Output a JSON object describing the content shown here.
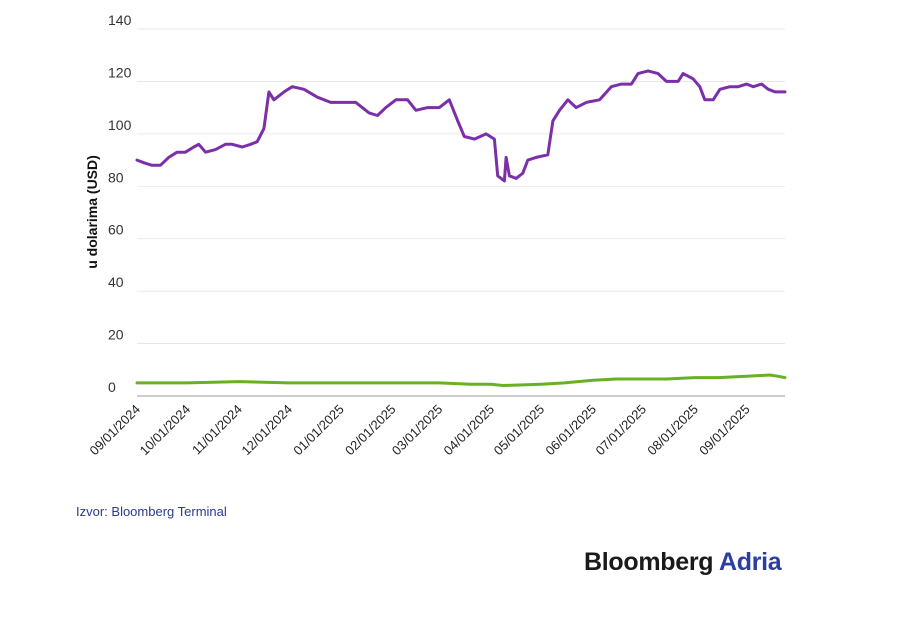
{
  "chart_data": {
    "type": "line",
    "ylabel": "u dolarima (USD)",
    "ylim": [
      0,
      140
    ],
    "yticks": [
      0,
      20,
      40,
      60,
      80,
      100,
      120,
      140
    ],
    "grid": true,
    "x_tick_labels": [
      "09/01/2024",
      "10/01/2024",
      "11/01/2024",
      "12/01/2024",
      "01/01/2025",
      "02/01/2025",
      "03/01/2025",
      "04/01/2025",
      "05/01/2025",
      "06/01/2025",
      "07/01/2025",
      "08/01/2025",
      "09/01/2025"
    ],
    "xlim": [
      "2024-09-01",
      "2025-09-24"
    ],
    "series": [
      {
        "color": "#7b2fa8",
        "points": [
          [
            "2024-09-01",
            90
          ],
          [
            "2024-09-05",
            89
          ],
          [
            "2024-09-10",
            88
          ],
          [
            "2024-09-15",
            88
          ],
          [
            "2024-09-20",
            91
          ],
          [
            "2024-09-25",
            93
          ],
          [
            "2024-09-30",
            93
          ],
          [
            "2024-10-05",
            95
          ],
          [
            "2024-10-08",
            96
          ],
          [
            "2024-10-12",
            93
          ],
          [
            "2024-10-18",
            94
          ],
          [
            "2024-10-24",
            96
          ],
          [
            "2024-10-28",
            96
          ],
          [
            "2024-11-03",
            95
          ],
          [
            "2024-11-08",
            96
          ],
          [
            "2024-11-12",
            97
          ],
          [
            "2024-11-16",
            102
          ],
          [
            "2024-11-19",
            116
          ],
          [
            "2024-11-22",
            113
          ],
          [
            "2024-11-28",
            116
          ],
          [
            "2024-12-03",
            118
          ],
          [
            "2024-12-10",
            117
          ],
          [
            "2024-12-18",
            114
          ],
          [
            "2024-12-26",
            112
          ],
          [
            "2025-01-03",
            112
          ],
          [
            "2025-01-10",
            112
          ],
          [
            "2025-01-18",
            108
          ],
          [
            "2025-01-23",
            107
          ],
          [
            "2025-01-28",
            110
          ],
          [
            "2025-02-03",
            113
          ],
          [
            "2025-02-10",
            113
          ],
          [
            "2025-02-15",
            109
          ],
          [
            "2025-02-22",
            110
          ],
          [
            "2025-03-01",
            110
          ],
          [
            "2025-03-07",
            113
          ],
          [
            "2025-03-12",
            105
          ],
          [
            "2025-03-16",
            99
          ],
          [
            "2025-03-22",
            98
          ],
          [
            "2025-03-29",
            100
          ],
          [
            "2025-04-03",
            98
          ],
          [
            "2025-04-05",
            84
          ],
          [
            "2025-04-09",
            82
          ],
          [
            "2025-04-10",
            91
          ],
          [
            "2025-04-12",
            84
          ],
          [
            "2025-04-16",
            83
          ],
          [
            "2025-04-20",
            85
          ],
          [
            "2025-04-23",
            90
          ],
          [
            "2025-04-28",
            91
          ],
          [
            "2025-05-05",
            92
          ],
          [
            "2025-05-08",
            105
          ],
          [
            "2025-05-12",
            109
          ],
          [
            "2025-05-17",
            113
          ],
          [
            "2025-05-22",
            110
          ],
          [
            "2025-05-28",
            112
          ],
          [
            "2025-06-05",
            113
          ],
          [
            "2025-06-12",
            118
          ],
          [
            "2025-06-18",
            119
          ],
          [
            "2025-06-24",
            119
          ],
          [
            "2025-06-28",
            123
          ],
          [
            "2025-07-04",
            124
          ],
          [
            "2025-07-10",
            123
          ],
          [
            "2025-07-15",
            120
          ],
          [
            "2025-07-22",
            120
          ],
          [
            "2025-07-25",
            123
          ],
          [
            "2025-07-31",
            121
          ],
          [
            "2025-08-04",
            118
          ],
          [
            "2025-08-07",
            113
          ],
          [
            "2025-08-12",
            113
          ],
          [
            "2025-08-16",
            117
          ],
          [
            "2025-08-22",
            118
          ],
          [
            "2025-08-27",
            118
          ],
          [
            "2025-09-01",
            119
          ],
          [
            "2025-09-05",
            118
          ],
          [
            "2025-09-10",
            119
          ],
          [
            "2025-09-14",
            117
          ],
          [
            "2025-09-18",
            116
          ],
          [
            "2025-09-24",
            116
          ]
        ]
      },
      {
        "color": "#6ab023",
        "points": [
          [
            "2024-09-01",
            5
          ],
          [
            "2024-10-01",
            5
          ],
          [
            "2024-11-01",
            5.5
          ],
          [
            "2024-12-01",
            5
          ],
          [
            "2025-01-01",
            5
          ],
          [
            "2025-02-01",
            5
          ],
          [
            "2025-03-01",
            5
          ],
          [
            "2025-03-20",
            4.5
          ],
          [
            "2025-04-01",
            4.5
          ],
          [
            "2025-04-08",
            4
          ],
          [
            "2025-05-01",
            4.5
          ],
          [
            "2025-05-15",
            5
          ],
          [
            "2025-06-01",
            6
          ],
          [
            "2025-06-15",
            6.5
          ],
          [
            "2025-07-01",
            6.5
          ],
          [
            "2025-07-15",
            6.5
          ],
          [
            "2025-08-01",
            7
          ],
          [
            "2025-08-15",
            7
          ],
          [
            "2025-09-01",
            7.5
          ],
          [
            "2025-09-15",
            8
          ],
          [
            "2025-09-20",
            7.5
          ],
          [
            "2025-09-24",
            7
          ]
        ]
      }
    ]
  },
  "source_text": "Izvor: Bloomberg Terminal",
  "brand": {
    "name": "Bloomberg",
    "accent": "Adria"
  }
}
